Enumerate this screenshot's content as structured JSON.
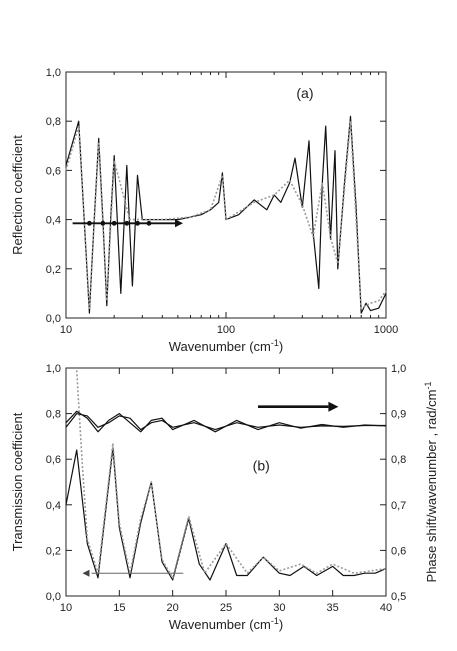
{
  "chart_data": [
    {
      "type": "line",
      "panel_label": "(a)",
      "xlabel": "Wavenumber (cm",
      "xlabel_sup": "-1",
      "xlabel_end": ")",
      "ylabel": "Reflection coefficient",
      "xscale": "log",
      "xlim": [
        10,
        1000
      ],
      "ylim": [
        0.0,
        1.0
      ],
      "x_ticks": [
        "10",
        "100",
        "1000"
      ],
      "y_ticks": [
        "0,0",
        "0,2",
        "0,4",
        "0,6",
        "0,8",
        "1,0"
      ],
      "grid": false,
      "series": [
        {
          "style": "solid-black",
          "x": [
            10,
            12,
            13,
            14,
            15,
            16,
            17,
            18,
            19,
            20,
            22,
            24,
            26,
            28,
            30,
            35,
            40,
            50,
            60,
            70,
            80,
            90,
            95,
            100,
            120,
            150,
            180,
            200,
            220,
            250,
            270,
            300,
            330,
            350,
            380,
            400,
            420,
            450,
            480,
            500,
            550,
            600,
            650,
            700,
            750,
            800,
            900,
            1000
          ],
          "y": [
            0.62,
            0.8,
            0.4,
            0.02,
            0.4,
            0.73,
            0.4,
            0.05,
            0.4,
            0.66,
            0.1,
            0.62,
            0.13,
            0.58,
            0.4,
            0.4,
            0.4,
            0.4,
            0.41,
            0.42,
            0.44,
            0.47,
            0.59,
            0.4,
            0.42,
            0.48,
            0.44,
            0.5,
            0.47,
            0.55,
            0.65,
            0.45,
            0.72,
            0.35,
            0.12,
            0.55,
            0.78,
            0.32,
            0.68,
            0.2,
            0.55,
            0.82,
            0.45,
            0.02,
            0.06,
            0.03,
            0.04,
            0.1
          ]
        },
        {
          "style": "dotted-grey",
          "x": [
            10,
            12,
            14,
            16,
            18,
            20,
            25,
            30,
            40,
            60,
            80,
            95,
            100,
            150,
            200,
            250,
            300,
            350,
            400,
            450,
            500,
            600,
            700,
            800,
            900,
            1000
          ],
          "y": [
            0.6,
            0.78,
            0.04,
            0.71,
            0.07,
            0.64,
            0.4,
            0.4,
            0.4,
            0.41,
            0.44,
            0.58,
            0.4,
            0.47,
            0.5,
            0.56,
            0.46,
            0.33,
            0.55,
            0.33,
            0.22,
            0.8,
            0.04,
            0.06,
            0.07,
            0.11
          ]
        }
      ],
      "annotation": "horizontal arrow with dots near y = 0.385 pointing right"
    },
    {
      "type": "line",
      "panel_label": "(b)",
      "xlabel": "Wavenumber (cm",
      "xlabel_sup": "-1",
      "xlabel_end": ")",
      "ylabel": "Transmission coefficient",
      "ylabel_right": "Phase shift/wavenumber , rad/cm",
      "ylabel_right_sup": "-1",
      "xlim": [
        10,
        40
      ],
      "ylim": [
        0.0,
        1.0
      ],
      "ylim_right": [
        0.5,
        1.0
      ],
      "x_ticks": [
        "10",
        "15",
        "20",
        "25",
        "30",
        "35",
        "40"
      ],
      "y_ticks": [
        "0,0",
        "0,2",
        "0,4",
        "0,6",
        "0,8",
        "1,0"
      ],
      "y_ticks_right": [
        "0,5",
        "0,6",
        "0,7",
        "0,8",
        "0,9",
        "1,0"
      ],
      "grid": false,
      "series": [
        {
          "style": "solid-black-transmission",
          "x": [
            10,
            11,
            12,
            13,
            14.4,
            15,
            16,
            17,
            18,
            19,
            20,
            21.5,
            22.5,
            23.5,
            25,
            26,
            27,
            28.5,
            30,
            31,
            32.3,
            33.5,
            35,
            36,
            37,
            38,
            39,
            40
          ],
          "y": [
            0.4,
            0.64,
            0.23,
            0.08,
            0.65,
            0.3,
            0.08,
            0.32,
            0.5,
            0.15,
            0.07,
            0.34,
            0.14,
            0.07,
            0.23,
            0.09,
            0.09,
            0.17,
            0.1,
            0.09,
            0.13,
            0.09,
            0.13,
            0.09,
            0.09,
            0.1,
            0.1,
            0.12
          ]
        },
        {
          "style": "dotted-grey-transmission",
          "x": [
            11,
            11.5,
            12,
            13,
            14.4,
            15,
            16,
            17,
            18,
            19,
            20,
            21.5,
            23,
            25,
            27,
            28.5,
            30,
            32,
            33.5,
            35,
            37,
            40
          ],
          "y": [
            0.99,
            0.6,
            0.25,
            0.1,
            0.67,
            0.32,
            0.1,
            0.34,
            0.5,
            0.16,
            0.08,
            0.35,
            0.1,
            0.23,
            0.1,
            0.17,
            0.11,
            0.14,
            0.1,
            0.14,
            0.1,
            0.12
          ]
        },
        {
          "style": "solid-black-phase",
          "x": [
            10,
            11,
            12,
            13,
            14,
            15,
            16,
            17,
            18,
            19,
            20,
            22,
            24,
            26,
            28,
            30,
            32,
            34,
            36,
            38,
            40
          ],
          "y": [
            0.87,
            0.9,
            0.895,
            0.87,
            0.88,
            0.895,
            0.89,
            0.865,
            0.88,
            0.885,
            0.87,
            0.88,
            0.865,
            0.88,
            0.87,
            0.875,
            0.87,
            0.873,
            0.872,
            0.874,
            0.874
          ]
        },
        {
          "style": "solid-black-phase-2",
          "x": [
            10,
            11,
            12,
            13,
            14,
            15,
            16,
            17,
            18,
            19,
            20,
            22,
            24,
            26,
            28,
            30,
            32,
            34,
            36,
            38,
            40
          ],
          "y": [
            0.88,
            0.905,
            0.89,
            0.86,
            0.885,
            0.9,
            0.88,
            0.86,
            0.885,
            0.89,
            0.865,
            0.885,
            0.86,
            0.885,
            0.865,
            0.88,
            0.868,
            0.876,
            0.87,
            0.875,
            0.873
          ]
        }
      ],
      "annotations": [
        "right-pointing arrow near x 28-35 on the phase curve (right axis)",
        "left-pointing thin arrow near y 0.10 from x 21 toward x 12 (left axis)"
      ]
    }
  ]
}
